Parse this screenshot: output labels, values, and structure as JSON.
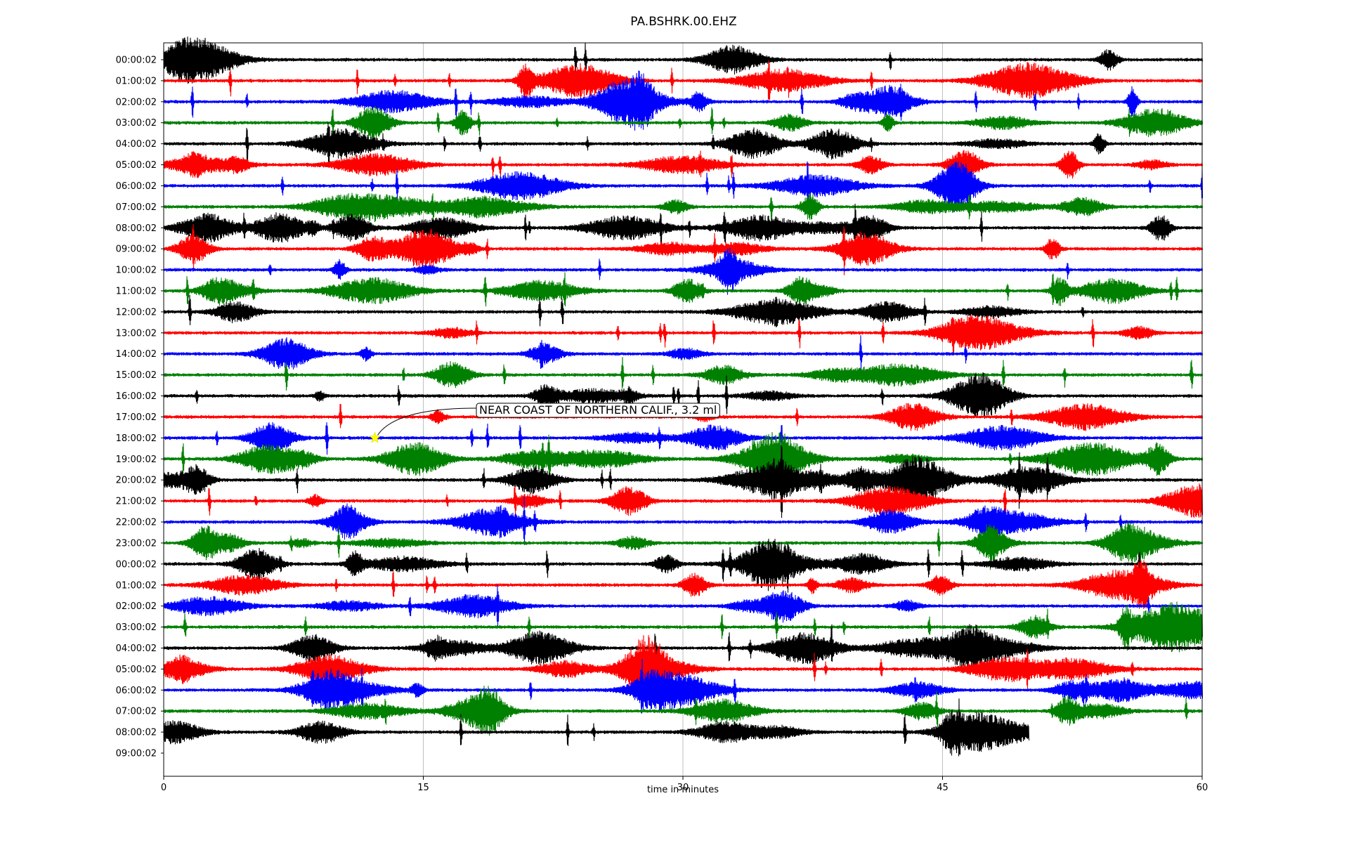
{
  "chart_data": {
    "type": "line",
    "title": "PA.BSHRK.00.EHZ",
    "xlabel": "time in minutes",
    "ylabel": "",
    "xlim": [
      0,
      60
    ],
    "x_ticks": [
      "0",
      "15",
      "30",
      "45",
      "60"
    ],
    "x_tick_values": [
      0,
      15,
      30,
      45,
      60
    ],
    "grid": "vertical at 15, 30, 45",
    "row_colors": [
      "#000000",
      "#ff0000",
      "#0000ff",
      "#008000"
    ],
    "row_labels": [
      "00:00:02",
      "01:00:02",
      "02:00:02",
      "03:00:02",
      "04:00:02",
      "05:00:02",
      "06:00:02",
      "07:00:02",
      "08:00:02",
      "09:00:02",
      "10:00:02",
      "11:00:02",
      "12:00:02",
      "13:00:02",
      "14:00:02",
      "15:00:02",
      "16:00:02",
      "17:00:02",
      "18:00:02",
      "19:00:02",
      "20:00:02",
      "21:00:02",
      "22:00:02",
      "23:00:02",
      "00:00:02",
      "01:00:02",
      "02:00:02",
      "03:00:02",
      "04:00:02",
      "05:00:02",
      "06:00:02",
      "07:00:02",
      "08:00:02",
      "09:00:02"
    ],
    "last_trace_end_minute": 50,
    "event_annotation": {
      "text": "NEAR COAST OF NORTHERN CALIF., 3.2 ml",
      "row_label": "18:00:02",
      "row_index": 18,
      "minute": 12.2,
      "marker": "star",
      "marker_color": "#ffff00"
    }
  }
}
